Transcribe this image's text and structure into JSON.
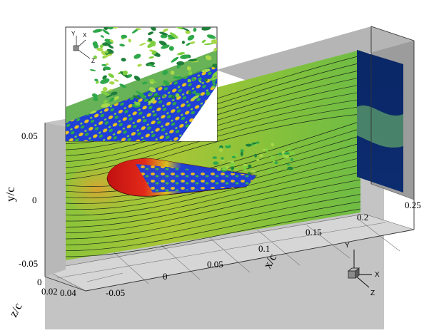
{
  "axes": {
    "x_title": "x/c",
    "y_title": "y/c",
    "z_title": "z/c",
    "x_ticks": [
      "-0.05",
      "0",
      "0.05",
      "0.1",
      "0.15",
      "0.2",
      "0.25"
    ],
    "y_ticks": [
      "0.05",
      "0",
      "-0.05"
    ],
    "z_ticks": [
      "0",
      "0.02",
      "0.04"
    ]
  },
  "triad_main": {
    "x": "X",
    "y": "Y",
    "z": "Z"
  },
  "triad_inset": {
    "x": "X",
    "y": "Y",
    "z": "Z"
  },
  "colors": {
    "green_field": "#7cc23a",
    "yellow_green": "#a7c93a",
    "blue_wall": "#0b2a6b",
    "red_surface": "#d81e1e",
    "blue_surface": "#1f3fd6",
    "panel_gray": "#c6c6c6",
    "floor_gray": "#d9d9d9"
  }
}
